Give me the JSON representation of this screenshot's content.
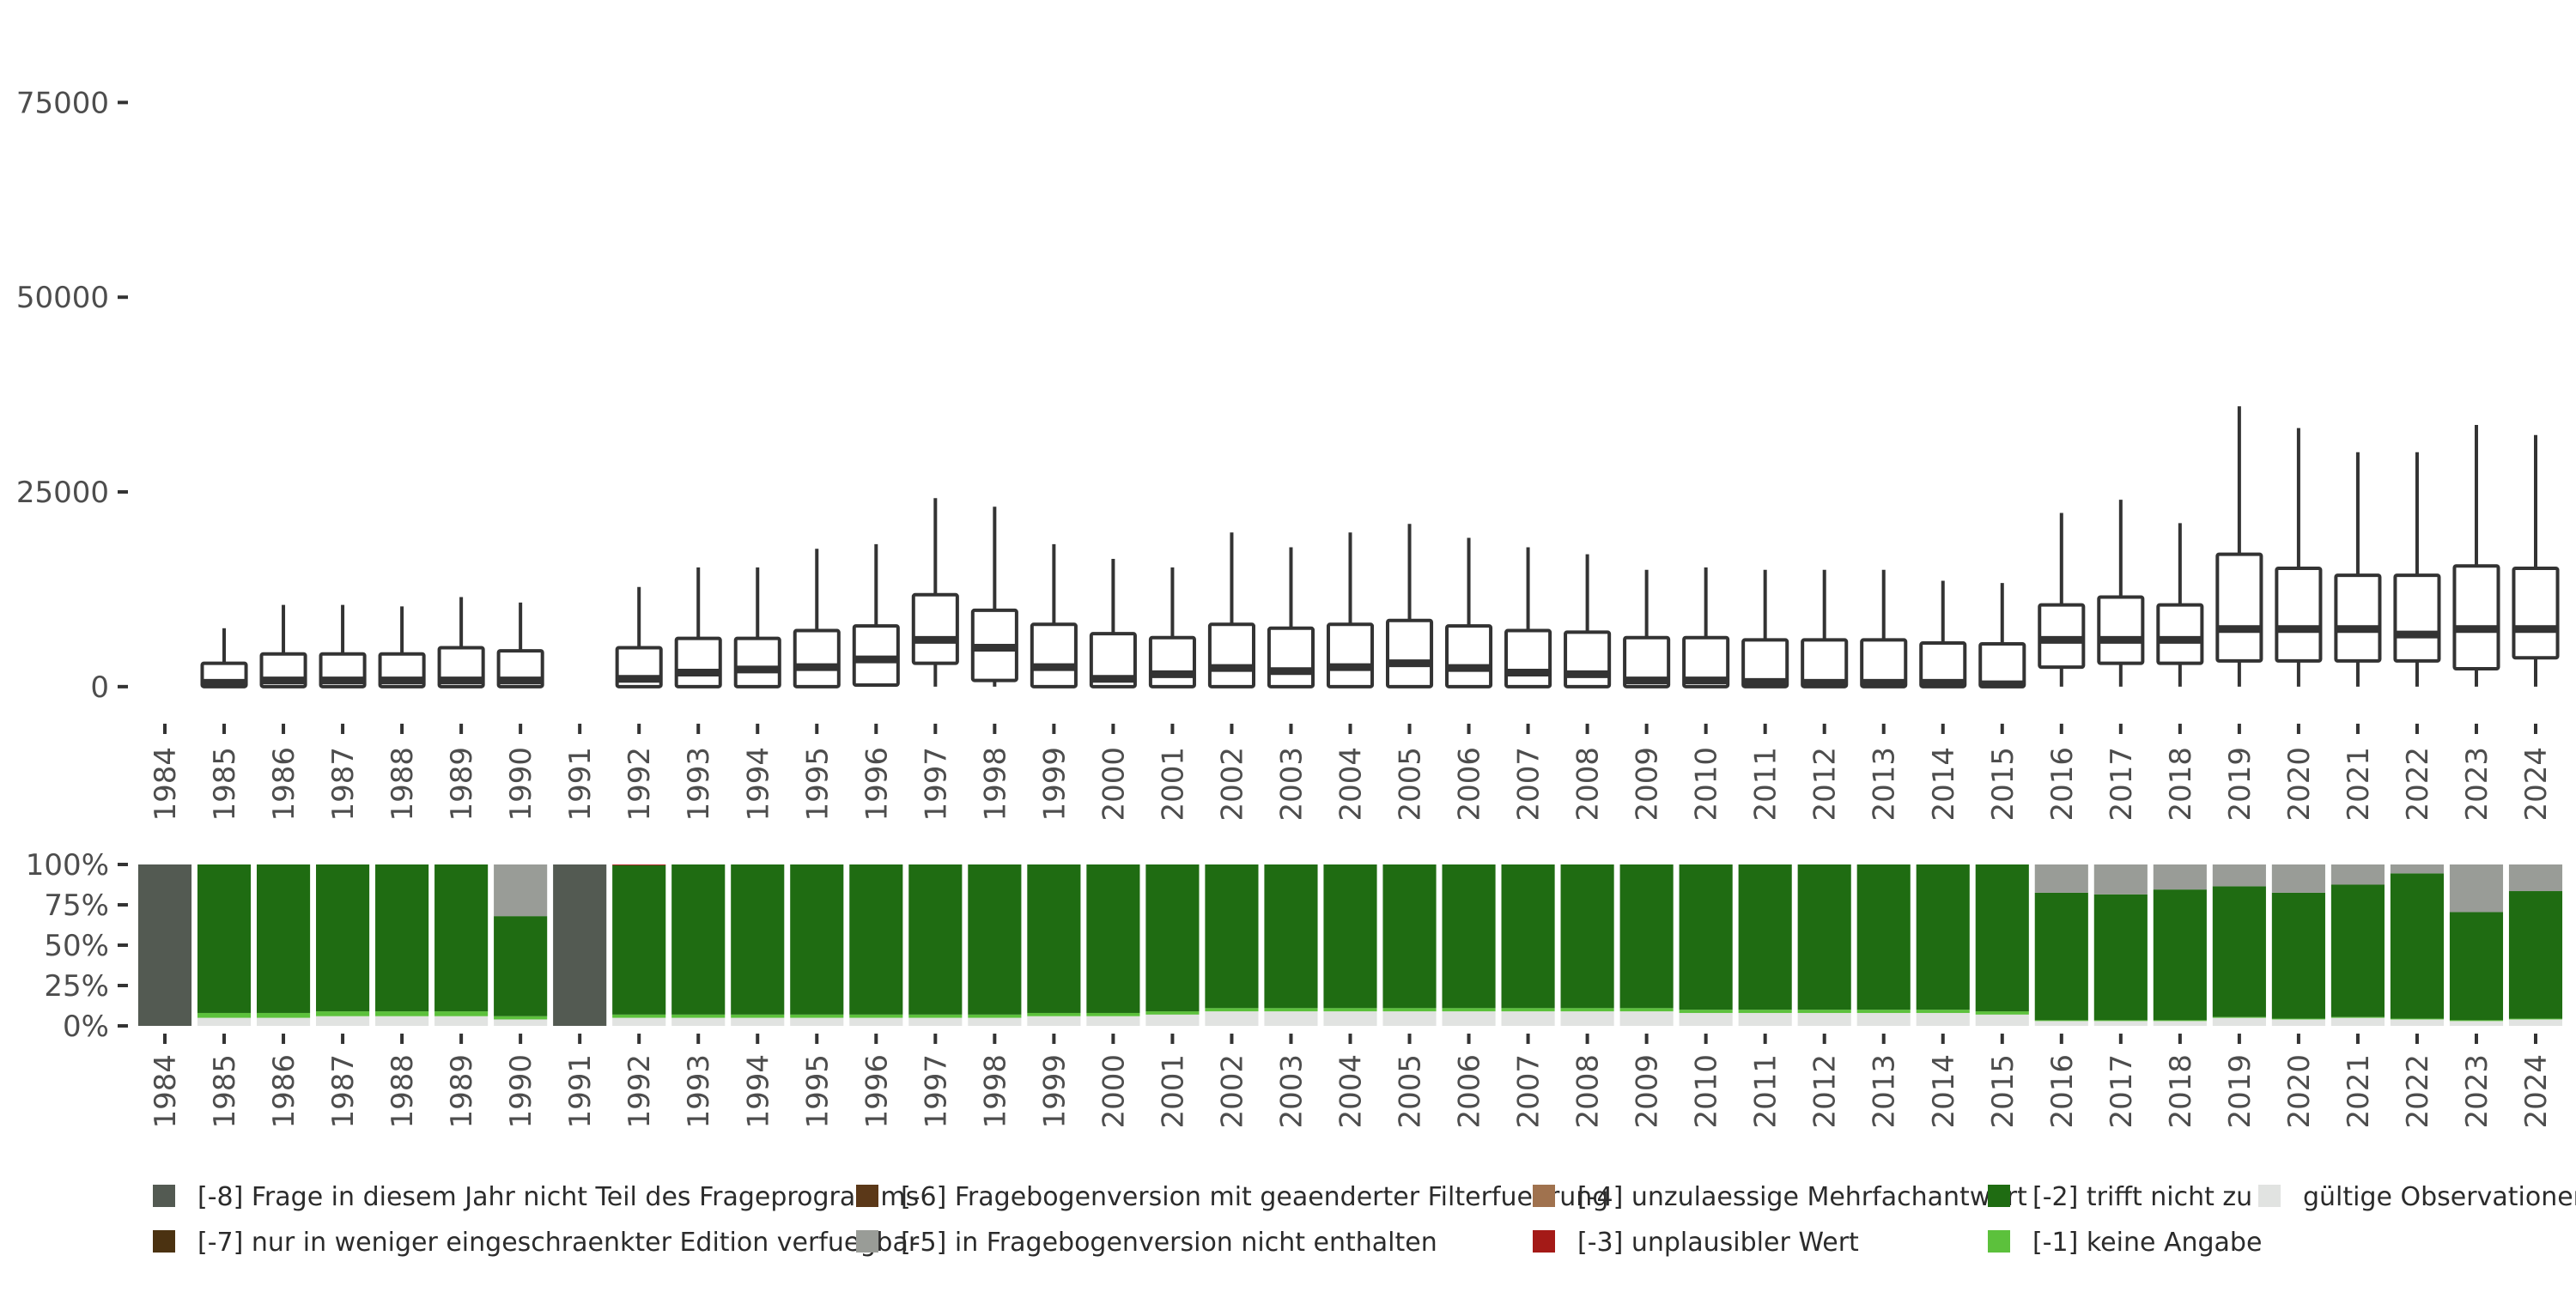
{
  "chart_data": [
    {
      "type": "box",
      "title": "",
      "xlabel": "",
      "ylabel": "",
      "ylim": [
        -2000,
        80000
      ],
      "yticks": [
        0,
        25000,
        50000,
        75000
      ],
      "ytick_labels": [
        "0",
        "25000",
        "50000",
        "75000"
      ],
      "categories": [
        "1984",
        "1985",
        "1986",
        "1987",
        "1988",
        "1989",
        "1990",
        "1991",
        "1992",
        "1993",
        "1994",
        "1995",
        "1996",
        "1997",
        "1998",
        "1999",
        "2000",
        "2001",
        "2002",
        "2003",
        "2004",
        "2005",
        "2006",
        "2007",
        "2008",
        "2009",
        "2010",
        "2011",
        "2012",
        "2013",
        "2014",
        "2015",
        "2016",
        "2017",
        "2018",
        "2019",
        "2020",
        "2021",
        "2022",
        "2023",
        "2024"
      ],
      "boxes": [
        null,
        {
          "min": 0,
          "q1": 0,
          "median": 500,
          "q3": 3000,
          "max": 7500
        },
        {
          "min": 0,
          "q1": 0,
          "median": 800,
          "q3": 4200,
          "max": 10500
        },
        {
          "min": 0,
          "q1": 0,
          "median": 800,
          "q3": 4200,
          "max": 10500
        },
        {
          "min": 0,
          "q1": 0,
          "median": 800,
          "q3": 4200,
          "max": 10300
        },
        {
          "min": 0,
          "q1": 0,
          "median": 800,
          "q3": 5000,
          "max": 11500
        },
        {
          "min": 0,
          "q1": 0,
          "median": 800,
          "q3": 4600,
          "max": 10800
        },
        null,
        {
          "min": 0,
          "q1": 0,
          "median": 1000,
          "q3": 5000,
          "max": 12800
        },
        {
          "min": 0,
          "q1": 0,
          "median": 1800,
          "q3": 6200,
          "max": 15300
        },
        {
          "min": 0,
          "q1": 0,
          "median": 2200,
          "q3": 6200,
          "max": 15300
        },
        {
          "min": 0,
          "q1": 0,
          "median": 2500,
          "q3": 7200,
          "max": 17700
        },
        {
          "min": 0,
          "q1": 200,
          "median": 3500,
          "q3": 7800,
          "max": 18300
        },
        {
          "min": 0,
          "q1": 3000,
          "median": 6000,
          "q3": 11800,
          "max": 24200
        },
        {
          "min": 0,
          "q1": 800,
          "median": 5000,
          "q3": 9800,
          "max": 23100
        },
        {
          "min": 0,
          "q1": 0,
          "median": 2500,
          "q3": 8000,
          "max": 18300
        },
        {
          "min": 0,
          "q1": 0,
          "median": 1000,
          "q3": 6800,
          "max": 16400
        },
        {
          "min": 0,
          "q1": 0,
          "median": 1600,
          "q3": 6300,
          "max": 15300
        },
        {
          "min": 0,
          "q1": 0,
          "median": 2400,
          "q3": 8000,
          "max": 19800
        },
        {
          "min": 0,
          "q1": 0,
          "median": 2000,
          "q3": 7500,
          "max": 17900
        },
        {
          "min": 0,
          "q1": 0,
          "median": 2500,
          "q3": 8000,
          "max": 19800
        },
        {
          "min": 0,
          "q1": 0,
          "median": 3000,
          "q3": 8500,
          "max": 20900
        },
        {
          "min": 0,
          "q1": 0,
          "median": 2400,
          "q3": 7800,
          "max": 19100
        },
        {
          "min": 0,
          "q1": 0,
          "median": 1800,
          "q3": 7200,
          "max": 17900
        },
        {
          "min": 0,
          "q1": 0,
          "median": 1600,
          "q3": 7000,
          "max": 17000
        },
        {
          "min": 0,
          "q1": 0,
          "median": 800,
          "q3": 6300,
          "max": 15000
        },
        {
          "min": 0,
          "q1": 0,
          "median": 800,
          "q3": 6300,
          "max": 15300
        },
        {
          "min": 0,
          "q1": 0,
          "median": 600,
          "q3": 6000,
          "max": 15000
        },
        {
          "min": 0,
          "q1": 0,
          "median": 500,
          "q3": 6000,
          "max": 15000
        },
        {
          "min": 0,
          "q1": 0,
          "median": 500,
          "q3": 6000,
          "max": 15000
        },
        {
          "min": 0,
          "q1": 0,
          "median": 500,
          "q3": 5600,
          "max": 13600
        },
        {
          "min": 0,
          "q1": 0,
          "median": 300,
          "q3": 5500,
          "max": 13300
        },
        {
          "min": 0,
          "q1": 2500,
          "median": 6000,
          "q3": 10500,
          "max": 22300
        },
        {
          "min": 0,
          "q1": 3000,
          "median": 6000,
          "q3": 11500,
          "max": 24000
        },
        {
          "min": 0,
          "q1": 3000,
          "median": 6000,
          "q3": 10500,
          "max": 21000
        },
        {
          "min": 0,
          "q1": 3300,
          "median": 7400,
          "q3": 17000,
          "max": 36000
        },
        {
          "min": 0,
          "q1": 3300,
          "median": 7400,
          "q3": 15200,
          "max": 33200
        },
        {
          "min": 0,
          "q1": 3300,
          "median": 7400,
          "q3": 14300,
          "max": 30100
        },
        {
          "min": 0,
          "q1": 3300,
          "median": 6700,
          "q3": 14300,
          "max": 30100
        },
        {
          "min": 0,
          "q1": 2300,
          "median": 7400,
          "q3": 15500,
          "max": 33600
        },
        {
          "min": 0,
          "q1": 3700,
          "median": 7400,
          "q3": 15200,
          "max": 32300
        }
      ]
    },
    {
      "type": "stacked_bar",
      "title": "",
      "xlabel": "",
      "ylabel": "",
      "ylim": [
        0,
        100
      ],
      "yticks": [
        0,
        25,
        50,
        75,
        100
      ],
      "ytick_labels": [
        "0%",
        "25%",
        "50%",
        "75%",
        "100%"
      ],
      "categories": [
        "1984",
        "1985",
        "1986",
        "1987",
        "1988",
        "1989",
        "1990",
        "1991",
        "1992",
        "1993",
        "1994",
        "1995",
        "1996",
        "1997",
        "1998",
        "1999",
        "2000",
        "2001",
        "2002",
        "2003",
        "2004",
        "2005",
        "2006",
        "2007",
        "2008",
        "2009",
        "2010",
        "2011",
        "2012",
        "2013",
        "2014",
        "2015",
        "2016",
        "2017",
        "2018",
        "2019",
        "2020",
        "2021",
        "2022",
        "2023",
        "2024"
      ],
      "series": [
        {
          "name": "gültige Observationen",
          "color": "#e1e3e1",
          "values": [
            0,
            5,
            5,
            6,
            6,
            6,
            4,
            0,
            5,
            5,
            5,
            5,
            5,
            5,
            5,
            6,
            6,
            7,
            9,
            9,
            9,
            9,
            9,
            9,
            9,
            9,
            8,
            8,
            8,
            8,
            8,
            7,
            3,
            3,
            3,
            5,
            4,
            5,
            4,
            3,
            4
          ]
        },
        {
          "name": "[-1] keine Angabe",
          "color": "#5cc13c",
          "values": [
            0,
            3,
            3,
            3,
            3,
            3,
            2,
            0,
            2,
            2,
            2,
            2,
            2,
            2,
            2,
            2,
            2,
            2,
            2,
            2,
            2,
            2,
            2,
            2,
            2,
            2,
            2,
            2,
            2,
            2,
            2,
            2,
            0.5,
            0.5,
            0.5,
            0.5,
            0.5,
            0.5,
            0.5,
            0.5,
            0.5
          ]
        },
        {
          "name": "[-2] trifft nicht zu",
          "color": "#1f6c12",
          "values": [
            0,
            92,
            92,
            91,
            91,
            91,
            62,
            0,
            92.5,
            93,
            93,
            93,
            93,
            93,
            93,
            92,
            92,
            91,
            89,
            89,
            89,
            89,
            89,
            89,
            89,
            89,
            90,
            90,
            90,
            90,
            90,
            91,
            79,
            78,
            81,
            81,
            78,
            82,
            90,
            67,
            79
          ]
        },
        {
          "name": "[-3] unplausibler Wert",
          "color": "#a41a17",
          "values": [
            0,
            0,
            0,
            0,
            0,
            0,
            0,
            0,
            0.5,
            0,
            0,
            0,
            0,
            0,
            0,
            0,
            0,
            0,
            0,
            0,
            0,
            0,
            0,
            0,
            0,
            0,
            0,
            0,
            0,
            0,
            0,
            0,
            0,
            0,
            0,
            0,
            0,
            0,
            0,
            0,
            0
          ]
        },
        {
          "name": "[-4] unzulaessige Mehrfachantwort",
          "color": "#a0724e",
          "values": [
            0,
            0,
            0,
            0,
            0,
            0,
            0,
            0,
            0,
            0,
            0,
            0,
            0,
            0,
            0,
            0,
            0,
            0,
            0,
            0,
            0,
            0,
            0,
            0,
            0,
            0,
            0,
            0,
            0,
            0,
            0,
            0,
            0,
            0,
            0,
            0,
            0,
            0,
            0,
            0,
            0
          ]
        },
        {
          "name": "[-5] in Fragebogenversion nicht enthalten",
          "color": "#999c97",
          "values": [
            0,
            0,
            0,
            0,
            0,
            0,
            32,
            0,
            0,
            0,
            0,
            0,
            0,
            0,
            0,
            0,
            0,
            0,
            0,
            0,
            0,
            0,
            0,
            0,
            0,
            0,
            0,
            0,
            0,
            0,
            0,
            0,
            17.5,
            18.5,
            15.5,
            13.5,
            17.5,
            12.5,
            5.5,
            29.5,
            16.5
          ]
        },
        {
          "name": "[-6] Fragebogenversion mit geaenderter Filterfuehrung",
          "color": "#5b3818",
          "values": [
            0,
            0,
            0,
            0,
            0,
            0,
            0,
            0,
            0,
            0,
            0,
            0,
            0,
            0,
            0,
            0,
            0,
            0,
            0,
            0,
            0,
            0,
            0,
            0,
            0,
            0,
            0,
            0,
            0,
            0,
            0,
            0,
            0,
            0,
            0,
            0,
            0,
            0,
            0,
            0,
            0
          ]
        },
        {
          "name": "[-7] nur in weniger eingeschraenkter Edition verfuegbar",
          "color": "#4b3211",
          "values": [
            0,
            0,
            0,
            0,
            0,
            0,
            0,
            0,
            0,
            0,
            0,
            0,
            0,
            0,
            0,
            0,
            0,
            0,
            0,
            0,
            0,
            0,
            0,
            0,
            0,
            0,
            0,
            0,
            0,
            0,
            0,
            0,
            0,
            0,
            0,
            0,
            0,
            0,
            0,
            0,
            0
          ]
        },
        {
          "name": "[-8] Frage in diesem Jahr nicht Teil des Frageprogramms",
          "color": "#535a52",
          "values": [
            100,
            0,
            0,
            0,
            0,
            0,
            0,
            100,
            0,
            0,
            0,
            0,
            0,
            0,
            0,
            0,
            0,
            0,
            0,
            0,
            0,
            0,
            0,
            0,
            0,
            0,
            0,
            0,
            0,
            0,
            0,
            0,
            0,
            0,
            0,
            0,
            0,
            0,
            0,
            0,
            0
          ]
        }
      ]
    }
  ],
  "legend": {
    "placement": "bottom",
    "items": [
      {
        "label": "[-8] Frage in diesem Jahr nicht Teil des Frageprogramms",
        "color": "#535a52"
      },
      {
        "label": "[-7] nur in weniger eingeschraenkter Edition verfuegbar",
        "color": "#4b3211"
      },
      {
        "label": "[-6] Fragebogenversion mit geaenderter Filterfuehrung",
        "color": "#5b3818"
      },
      {
        "label": "[-5] in Fragebogenversion nicht enthalten",
        "color": "#999c97"
      },
      {
        "label": "[-4] unzulaessige Mehrfachantwort",
        "color": "#a0724e"
      },
      {
        "label": "[-3] unplausibler Wert",
        "color": "#a41a17"
      },
      {
        "label": "[-2] trifft nicht zu",
        "color": "#1f6c12"
      },
      {
        "label": "[-1] keine Angabe",
        "color": "#5cc13c"
      },
      {
        "label": "gültige Observationen",
        "color": "#e1e3e1"
      }
    ]
  }
}
